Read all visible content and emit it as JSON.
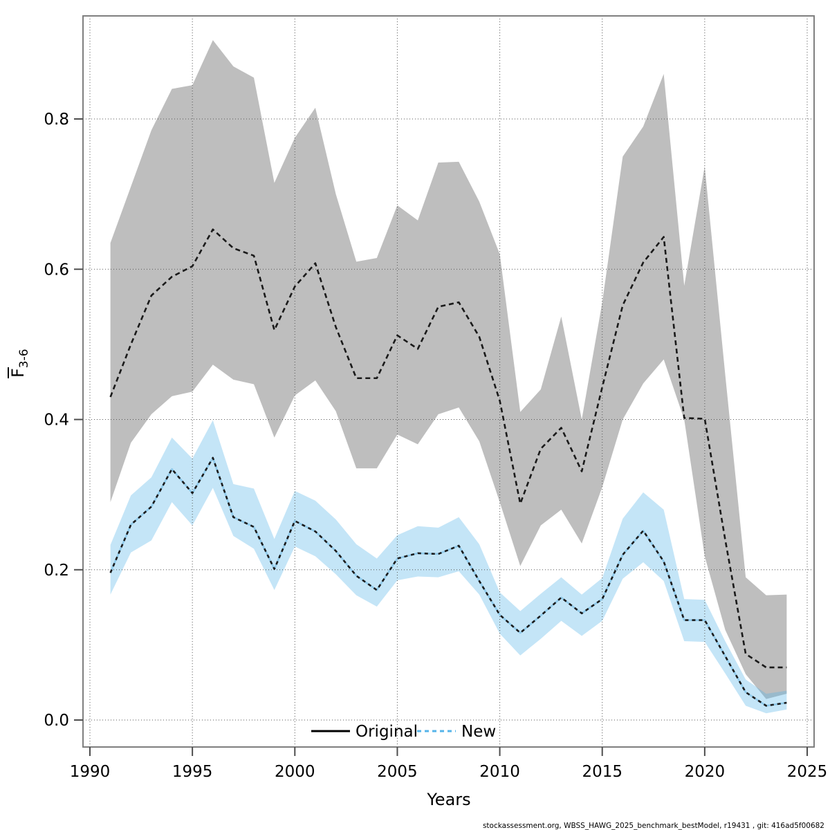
{
  "labels": {
    "xlabel": "Years",
    "footer": "stockassessment.org, WBSS_HAWG_2025_benchmark_bestModel, r19431 , git: 416ad5f00682"
  },
  "chart_data": {
    "type": "line",
    "title": "",
    "xlabel": "Years",
    "ylabel_base": "F",
    "ylabel_sub": "3-6",
    "xlim": [
      1989.7,
      2025.3
    ],
    "ylim": [
      -0.036,
      0.937
    ],
    "grid": "dotted",
    "legend_position": "bottom-center-inside",
    "x_ticks": [
      1990,
      1995,
      2000,
      2005,
      2010,
      2015,
      2020,
      2025
    ],
    "y_ticks": [
      "0.0",
      "0.2",
      "0.4",
      "0.6",
      "0.8"
    ],
    "years": [
      1991,
      1992,
      1993,
      1994,
      1995,
      1996,
      1997,
      1998,
      1999,
      2000,
      2001,
      2002,
      2003,
      2004,
      2005,
      2006,
      2007,
      2008,
      2009,
      2010,
      2011,
      2012,
      2013,
      2014,
      2015,
      2016,
      2017,
      2018,
      2019,
      2020,
      2021,
      2022,
      2023,
      2024
    ],
    "series": [
      {
        "name": "Original",
        "color": "#1a1a1a",
        "dash": "7 5",
        "band_color": "#bebebe",
        "band_opacity": 1,
        "values": [
          0.43,
          0.5,
          0.565,
          0.59,
          0.604,
          0.653,
          0.628,
          0.618,
          0.519,
          0.577,
          0.608,
          0.523,
          0.455,
          0.455,
          0.512,
          0.494,
          0.55,
          0.556,
          0.51,
          0.425,
          0.288,
          0.361,
          0.389,
          0.331,
          0.443,
          0.552,
          0.609,
          0.643,
          0.402,
          0.401,
          0.24,
          0.088,
          0.07,
          0.07
        ],
        "upper": [
          0.635,
          0.71,
          0.785,
          0.84,
          0.845,
          0.905,
          0.87,
          0.855,
          0.715,
          0.775,
          0.815,
          0.7,
          0.61,
          0.615,
          0.685,
          0.665,
          0.742,
          0.743,
          0.69,
          0.62,
          0.41,
          0.44,
          0.537,
          0.4,
          0.556,
          0.75,
          0.79,
          0.86,
          0.578,
          0.737,
          0.46,
          0.19,
          0.166,
          0.167
        ],
        "lower": [
          0.29,
          0.369,
          0.407,
          0.431,
          0.437,
          0.473,
          0.453,
          0.447,
          0.376,
          0.432,
          0.452,
          0.411,
          0.335,
          0.335,
          0.38,
          0.367,
          0.407,
          0.416,
          0.371,
          0.29,
          0.205,
          0.259,
          0.28,
          0.235,
          0.31,
          0.4,
          0.448,
          0.48,
          0.4,
          0.218,
          0.12,
          0.061,
          0.028,
          0.035
        ]
      },
      {
        "name": "New",
        "color": "#1b1b1b",
        "dash": "5 5",
        "underlay_color": "#8FC9E9",
        "band_color": "#56B4E9",
        "band_opacity": 0.35,
        "values": [
          0.196,
          0.26,
          0.284,
          0.334,
          0.302,
          0.349,
          0.27,
          0.257,
          0.201,
          0.265,
          0.251,
          0.225,
          0.192,
          0.173,
          0.215,
          0.222,
          0.221,
          0.232,
          0.185,
          0.14,
          0.116,
          0.139,
          0.163,
          0.142,
          0.161,
          0.22,
          0.252,
          0.211,
          0.133,
          0.133,
          0.085,
          0.037,
          0.019,
          0.023
        ],
        "upper": [
          0.233,
          0.299,
          0.323,
          0.376,
          0.348,
          0.399,
          0.314,
          0.308,
          0.241,
          0.305,
          0.292,
          0.267,
          0.234,
          0.215,
          0.246,
          0.258,
          0.256,
          0.27,
          0.234,
          0.17,
          0.145,
          0.168,
          0.19,
          0.167,
          0.189,
          0.268,
          0.303,
          0.28,
          0.161,
          0.16,
          0.105,
          0.054,
          0.035,
          0.039
        ],
        "lower": [
          0.167,
          0.223,
          0.239,
          0.29,
          0.259,
          0.309,
          0.245,
          0.228,
          0.173,
          0.231,
          0.218,
          0.194,
          0.166,
          0.151,
          0.186,
          0.191,
          0.19,
          0.198,
          0.167,
          0.115,
          0.086,
          0.108,
          0.132,
          0.112,
          0.132,
          0.188,
          0.21,
          0.185,
          0.105,
          0.104,
          0.062,
          0.019,
          0.009,
          0.014
        ]
      }
    ],
    "legend": [
      {
        "label": "Original",
        "color": "#000000",
        "style": "solid"
      },
      {
        "label": "New",
        "color": "#56B4E9",
        "style": "dashed"
      }
    ]
  }
}
